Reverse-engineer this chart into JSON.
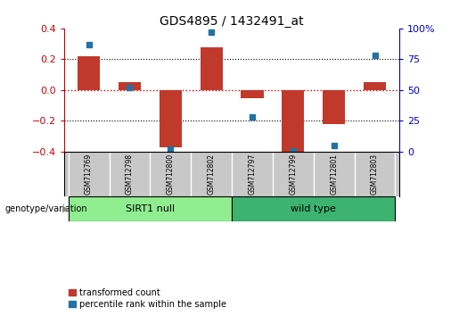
{
  "title": "GDS4895 / 1432491_at",
  "samples": [
    "GSM712769",
    "GSM712798",
    "GSM712800",
    "GSM712802",
    "GSM712797",
    "GSM712799",
    "GSM712801",
    "GSM712803"
  ],
  "red_values": [
    0.22,
    0.05,
    -0.37,
    0.28,
    -0.05,
    -0.4,
    -0.22,
    0.05
  ],
  "blue_values": [
    87,
    52,
    2,
    97,
    28,
    1,
    5,
    78
  ],
  "ylim_left": [
    -0.4,
    0.4
  ],
  "ylim_right": [
    0,
    100
  ],
  "yticks_left": [
    -0.4,
    -0.2,
    0.0,
    0.2,
    0.4
  ],
  "yticks_right": [
    0,
    25,
    50,
    75,
    100
  ],
  "yticklabels_right": [
    "0",
    "25",
    "50",
    "75",
    "100%"
  ],
  "red_color": "#C0392B",
  "blue_color": "#2471A3",
  "bar_width": 0.55,
  "group1_label": "SIRT1 null",
  "group2_label": "wild type",
  "group1_color": "#90EE90",
  "group2_color": "#3CB371",
  "group1_indices": [
    0,
    1,
    2,
    3
  ],
  "group2_indices": [
    4,
    5,
    6,
    7
  ],
  "genotype_label": "genotype/variation",
  "legend_red": "transformed count",
  "legend_blue": "percentile rank within the sample",
  "hline_color": "#CC0000",
  "dotted_color": "black",
  "axis_left_color": "#CC0000",
  "axis_right_color": "#0000CC",
  "bg_color": "white",
  "sample_box_color": "#C8C8C8"
}
